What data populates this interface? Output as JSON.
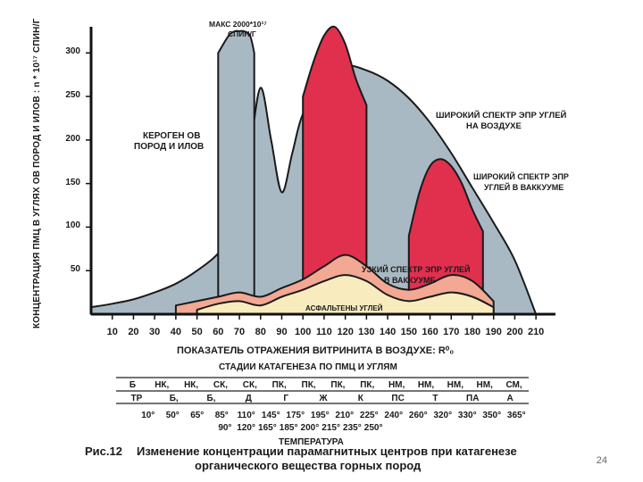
{
  "chart_data": {
    "type": "area",
    "title": "",
    "ylabel": "КОНЦЕНТРАЦИЯ ПМЦ В УГЛЯХ ОВ ПОРОД И ИЛОВ : n * 10¹⁷ СПИН/Г",
    "xlabel": "ПОКАЗАТЕЛЬ ОТРАЖЕНИЯ ВИТРИНИТА В ВОЗДУХЕ: R⁰₀",
    "xticks": [
      "10",
      "20",
      "30",
      "40",
      "50",
      "60",
      "70",
      "80",
      "90",
      "100",
      "110",
      "120",
      "130",
      "140",
      "150",
      "160",
      "170",
      "180",
      "190",
      "200",
      "210"
    ],
    "yticks": [
      "50",
      "100",
      "150",
      "200",
      "250",
      "300"
    ],
    "ylim": [
      0,
      330
    ],
    "xlim": [
      0,
      215
    ],
    "series": [
      {
        "name": "КЕРОГЕН ОВ ПОРОД И ИЛОВ",
        "color": "#a9b9c4",
        "x": [
          0,
          10,
          20,
          30,
          40,
          50,
          60,
          65,
          70,
          75,
          80,
          85,
          90,
          95,
          100,
          110,
          120,
          130,
          140,
          150,
          160,
          170,
          180,
          190,
          200,
          210
        ],
        "y": [
          8,
          12,
          17,
          25,
          35,
          50,
          70,
          95,
          135,
          190,
          260,
          200,
          140,
          185,
          230,
          270,
          285,
          280,
          268,
          248,
          220,
          185,
          145,
          105,
          62,
          0
        ]
      },
      {
        "name": "МАКС 2000*10¹⁷ СПИН/Г",
        "color": "#a9b9c4",
        "x": [
          60,
          65,
          68,
          70,
          72,
          75,
          77
        ],
        "y": [
          300,
          320,
          325,
          325,
          325,
          320,
          300
        ]
      },
      {
        "name": "ШИРОКИЙ СПЕКТР ЭПР УГЛЕЙ НА ВОЗДУХЕ",
        "color": "#e0304e",
        "x": [
          100,
          105,
          110,
          115,
          120,
          125,
          130
        ],
        "y": [
          250,
          290,
          320,
          330,
          310,
          270,
          240
        ]
      },
      {
        "name": "ШИРОКИЙ СПЕКТР ЭПР УГЛЕЙ В ВАККУУМЕ",
        "color": "#e0304e",
        "x": [
          150,
          155,
          160,
          165,
          170,
          175,
          180,
          185
        ],
        "y": [
          90,
          140,
          170,
          178,
          170,
          150,
          120,
          95
        ]
      },
      {
        "name": "УЗКИЙ СПЕКТР ЭПР УГЛЕЙ В ВАККУУМЕ",
        "color": "#f2a893",
        "x": [
          40,
          60,
          70,
          80,
          90,
          100,
          110,
          120,
          130,
          140,
          150,
          160,
          170,
          180,
          190
        ],
        "y": [
          10,
          20,
          25,
          20,
          30,
          40,
          55,
          68,
          55,
          35,
          28,
          35,
          45,
          38,
          15
        ]
      },
      {
        "name": "АСФАЛЬТЕНЫ УГЛЕЙ",
        "color": "#f8ecbf",
        "x": [
          50,
          60,
          70,
          80,
          90,
          100,
          110,
          120,
          130,
          140,
          150,
          160,
          170,
          180,
          190
        ],
        "y": [
          5,
          12,
          15,
          10,
          20,
          28,
          38,
          45,
          38,
          22,
          15,
          20,
          25,
          20,
          8
        ]
      }
    ],
    "annotations": [
      "МАКС 2000*10¹⁷ СПИН/Г",
      "КЕРОГЕН ОВ ПОРОД И ИЛОВ",
      "ШИРОКИЙ СПЕКТР ЭПР УГЛЕЙ НА ВОЗДУХЕ",
      "ШИРОКИЙ СПЕКТР ЭПР УГЛЕЙ В ВАККУУМЕ",
      "УЗКИЙ СПЕКТР ЭПР УГЛЕЙ В ВАККУУМЕ",
      "АСФАЛЬТЕНЫ УГЛЕЙ"
    ]
  },
  "labels": {
    "max_line1": "МАКС 2000*10¹⁷",
    "max_line2": "СПИН/Г",
    "kerogen_line1": "КЕРОГЕН ОВ",
    "kerogen_line2": "ПОРОД И ИЛОВ",
    "air_line1": "ШИРОКИЙ СПЕКТР ЭПР УГЛЕЙ",
    "air_line2": "НА ВОЗДУХЕ",
    "vac_line1": "ШИРОКИЙ СПЕКТР ЭПР",
    "vac_line2": "УГЛЕЙ В ВАККУУМЕ",
    "narrow_line1": "УЗКИЙ СПЕКТР ЭПР УГЛЕЙ",
    "narrow_line2": "В ВАККУУМЕ",
    "asph": "АСФАЛЬТЕНЫ УГЛЕЙ"
  },
  "stages": {
    "title": "СТАДИИ КАТАГЕНЕЗА ПО ПМЦ И УГЛЯМ",
    "row1": [
      "Б",
      "НК,",
      "НК,",
      "СК,",
      "СК,",
      "ПК,",
      "ПК,",
      "ПК,",
      "ПК,",
      "НМ,",
      "НМ,",
      "НМ,",
      "НМ,",
      "СМ,"
    ],
    "row2": [
      "ТР",
      "Б,",
      "Б,",
      "Д",
      "Г",
      "Ж",
      "К",
      "ПС",
      "Т",
      "ПА",
      "А"
    ]
  },
  "temperature": {
    "title": "ТЕМПЕРАТУРА",
    "row1": [
      "10°",
      "50°",
      "65°",
      "85°",
      "110°",
      "145°",
      "175°",
      "195°",
      "210°",
      "225°",
      "240°",
      "260°",
      "320°",
      "330°",
      "350°",
      "365°"
    ],
    "row2": [
      "90°",
      "120°",
      "165°",
      "185°",
      "200°",
      "215°",
      "235°",
      "250°"
    ]
  },
  "caption": {
    "fig": "Рис.12",
    "line1": "Изменение концентрации парамагнитных центров при катагенезе",
    "line2": "органического вещества горных пород"
  },
  "page_number": "24"
}
